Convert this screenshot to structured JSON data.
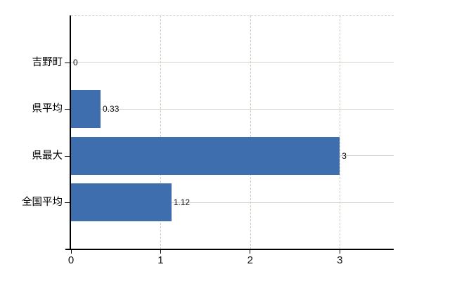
{
  "chart_data": {
    "type": "bar",
    "orientation": "horizontal",
    "title": "",
    "xlabel": "",
    "ylabel": "",
    "categories": [
      "吉野町",
      "県平均",
      "県最大",
      "全国平均"
    ],
    "values": [
      0,
      0.33,
      3,
      1.12
    ],
    "value_labels": [
      "0",
      "0.33",
      "3",
      "1.12"
    ],
    "x_ticks": [
      0,
      1,
      2,
      3
    ],
    "x_tick_labels": [
      "0",
      "1",
      "2",
      "3"
    ],
    "xlim": [
      0,
      3.61
    ],
    "grid": true,
    "legend": false,
    "colors": {
      "bar": "#3e6eae",
      "h_gridline": "#cfd5c9",
      "v_gridline_dashed": "#c8cdc3",
      "top_border_dashed": "#c6c6c6",
      "axis": "#000000",
      "text": "#111111"
    }
  }
}
